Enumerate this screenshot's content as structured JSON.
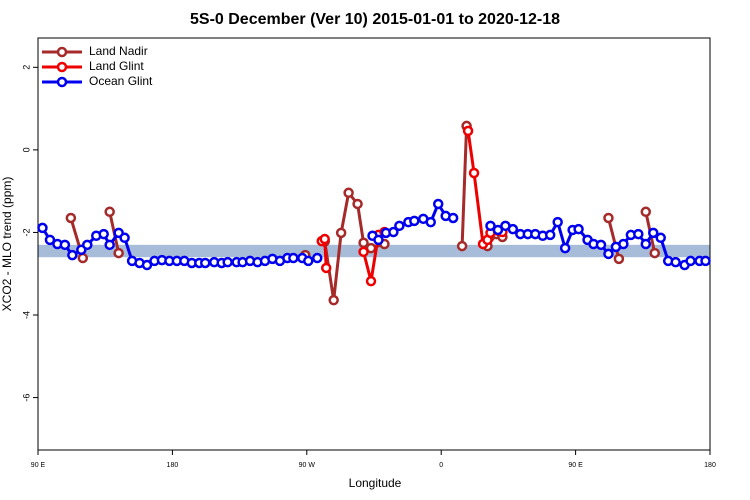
{
  "chart_data": {
    "type": "line",
    "title": "5S-0 December (Ver 10)   2015-01-01 to 2020-12-18",
    "x_label": "Longitude",
    "y_label": "XCO2 - MLO trend (ppm)",
    "xlim": [
      -270,
      180
    ],
    "xticks": [
      {
        "value": -270,
        "label": "90 E"
      },
      {
        "value": -180,
        "label": "180"
      },
      {
        "value": -90,
        "label": "90 W"
      },
      0,
      {
        "value": 90,
        "label": "90 E"
      },
      180
    ],
    "ylim": [
      -7.27,
      2.71
    ],
    "yticks": [
      -6,
      -4,
      -2,
      0,
      2
    ],
    "band": {
      "range": [
        -2.6,
        -2.3
      ],
      "color": "#a7bcd9"
    },
    "legend": "top-left",
    "series": [
      {
        "name": "Land Nadir",
        "color": "#a52a2a",
        "x": [
          -248,
          -240,
          null,
          -222,
          -216,
          null,
          -91,
          null,
          -78,
          -72,
          -67,
          -62,
          -56,
          -52,
          -47,
          -38,
          null,
          14,
          17,
          null,
          31,
          37,
          41,
          null,
          112,
          119,
          null,
          137,
          143
        ],
        "values": [
          -1.65,
          -2.62,
          null,
          -1.5,
          -2.5,
          null,
          -2.55,
          null,
          -2.22,
          -3.64,
          -2.01,
          -1.04,
          -1.31,
          -2.25,
          -2.38,
          -2.28,
          null,
          -2.33,
          0.58,
          null,
          -2.33,
          -2.04,
          -2.11,
          null,
          -1.65,
          -2.64,
          null,
          -1.5,
          -2.5
        ]
      },
      {
        "name": "Land Glint",
        "color": "#ee0000",
        "x": [
          -80,
          -78,
          -77,
          null,
          -52,
          -47,
          -42,
          -38,
          null,
          18,
          22,
          28,
          31,
          33,
          38,
          41
        ],
        "values": [
          -2.21,
          -2.16,
          -2.86,
          null,
          -2.47,
          -3.18,
          -2.06,
          -1.99,
          null,
          0.46,
          -0.56,
          -2.28,
          -2.18,
          -2.01,
          -1.96,
          -1.99
        ]
      },
      {
        "name": "Ocean Glint",
        "color": "#0000ee",
        "x": [
          -267,
          -262,
          -257,
          -252,
          -247,
          -241,
          -237,
          -231,
          -226,
          -222,
          -216,
          -212,
          -207,
          -202,
          -197,
          -192,
          -187,
          -182,
          -177,
          -172,
          -167,
          -162,
          -158,
          -152,
          -147,
          -143,
          -137,
          -133,
          -128,
          -123,
          -118,
          -113,
          -108,
          -103,
          -99,
          -93,
          -89,
          -83,
          null,
          -46,
          -42,
          -37,
          -32,
          -28,
          -22,
          -18,
          -12,
          -7,
          -2,
          3,
          8,
          null,
          33,
          38,
          43,
          48,
          53,
          58,
          63,
          68,
          73,
          78,
          83,
          88,
          92,
          98,
          102,
          107,
          112,
          117,
          122,
          127,
          132,
          137,
          142,
          147,
          152,
          157,
          163,
          167,
          173,
          177
        ],
        "values": [
          -1.89,
          -2.18,
          -2.28,
          -2.3,
          -2.55,
          -2.42,
          -2.3,
          -2.08,
          -2.04,
          -2.3,
          -2.01,
          -2.13,
          -2.69,
          -2.74,
          -2.79,
          -2.69,
          -2.67,
          -2.69,
          -2.69,
          -2.69,
          -2.74,
          -2.74,
          -2.74,
          -2.72,
          -2.74,
          -2.72,
          -2.72,
          -2.72,
          -2.69,
          -2.72,
          -2.69,
          -2.64,
          -2.69,
          -2.62,
          -2.62,
          -2.62,
          -2.69,
          -2.62,
          null,
          -2.08,
          -2.18,
          -2.01,
          -1.99,
          -1.84,
          -1.75,
          -1.72,
          -1.67,
          -1.75,
          -1.31,
          -1.6,
          -1.65,
          null,
          -1.84,
          -1.94,
          -1.84,
          -1.92,
          -2.04,
          -2.04,
          -2.04,
          -2.08,
          -2.06,
          -1.75,
          -2.38,
          -1.94,
          -1.92,
          -2.18,
          -2.28,
          -2.3,
          -2.52,
          -2.35,
          -2.28,
          -2.06,
          -2.04,
          -2.28,
          -2.01,
          -2.13,
          -2.69,
          -2.72,
          -2.79,
          -2.69,
          -2.69,
          -2.69
        ]
      }
    ]
  }
}
